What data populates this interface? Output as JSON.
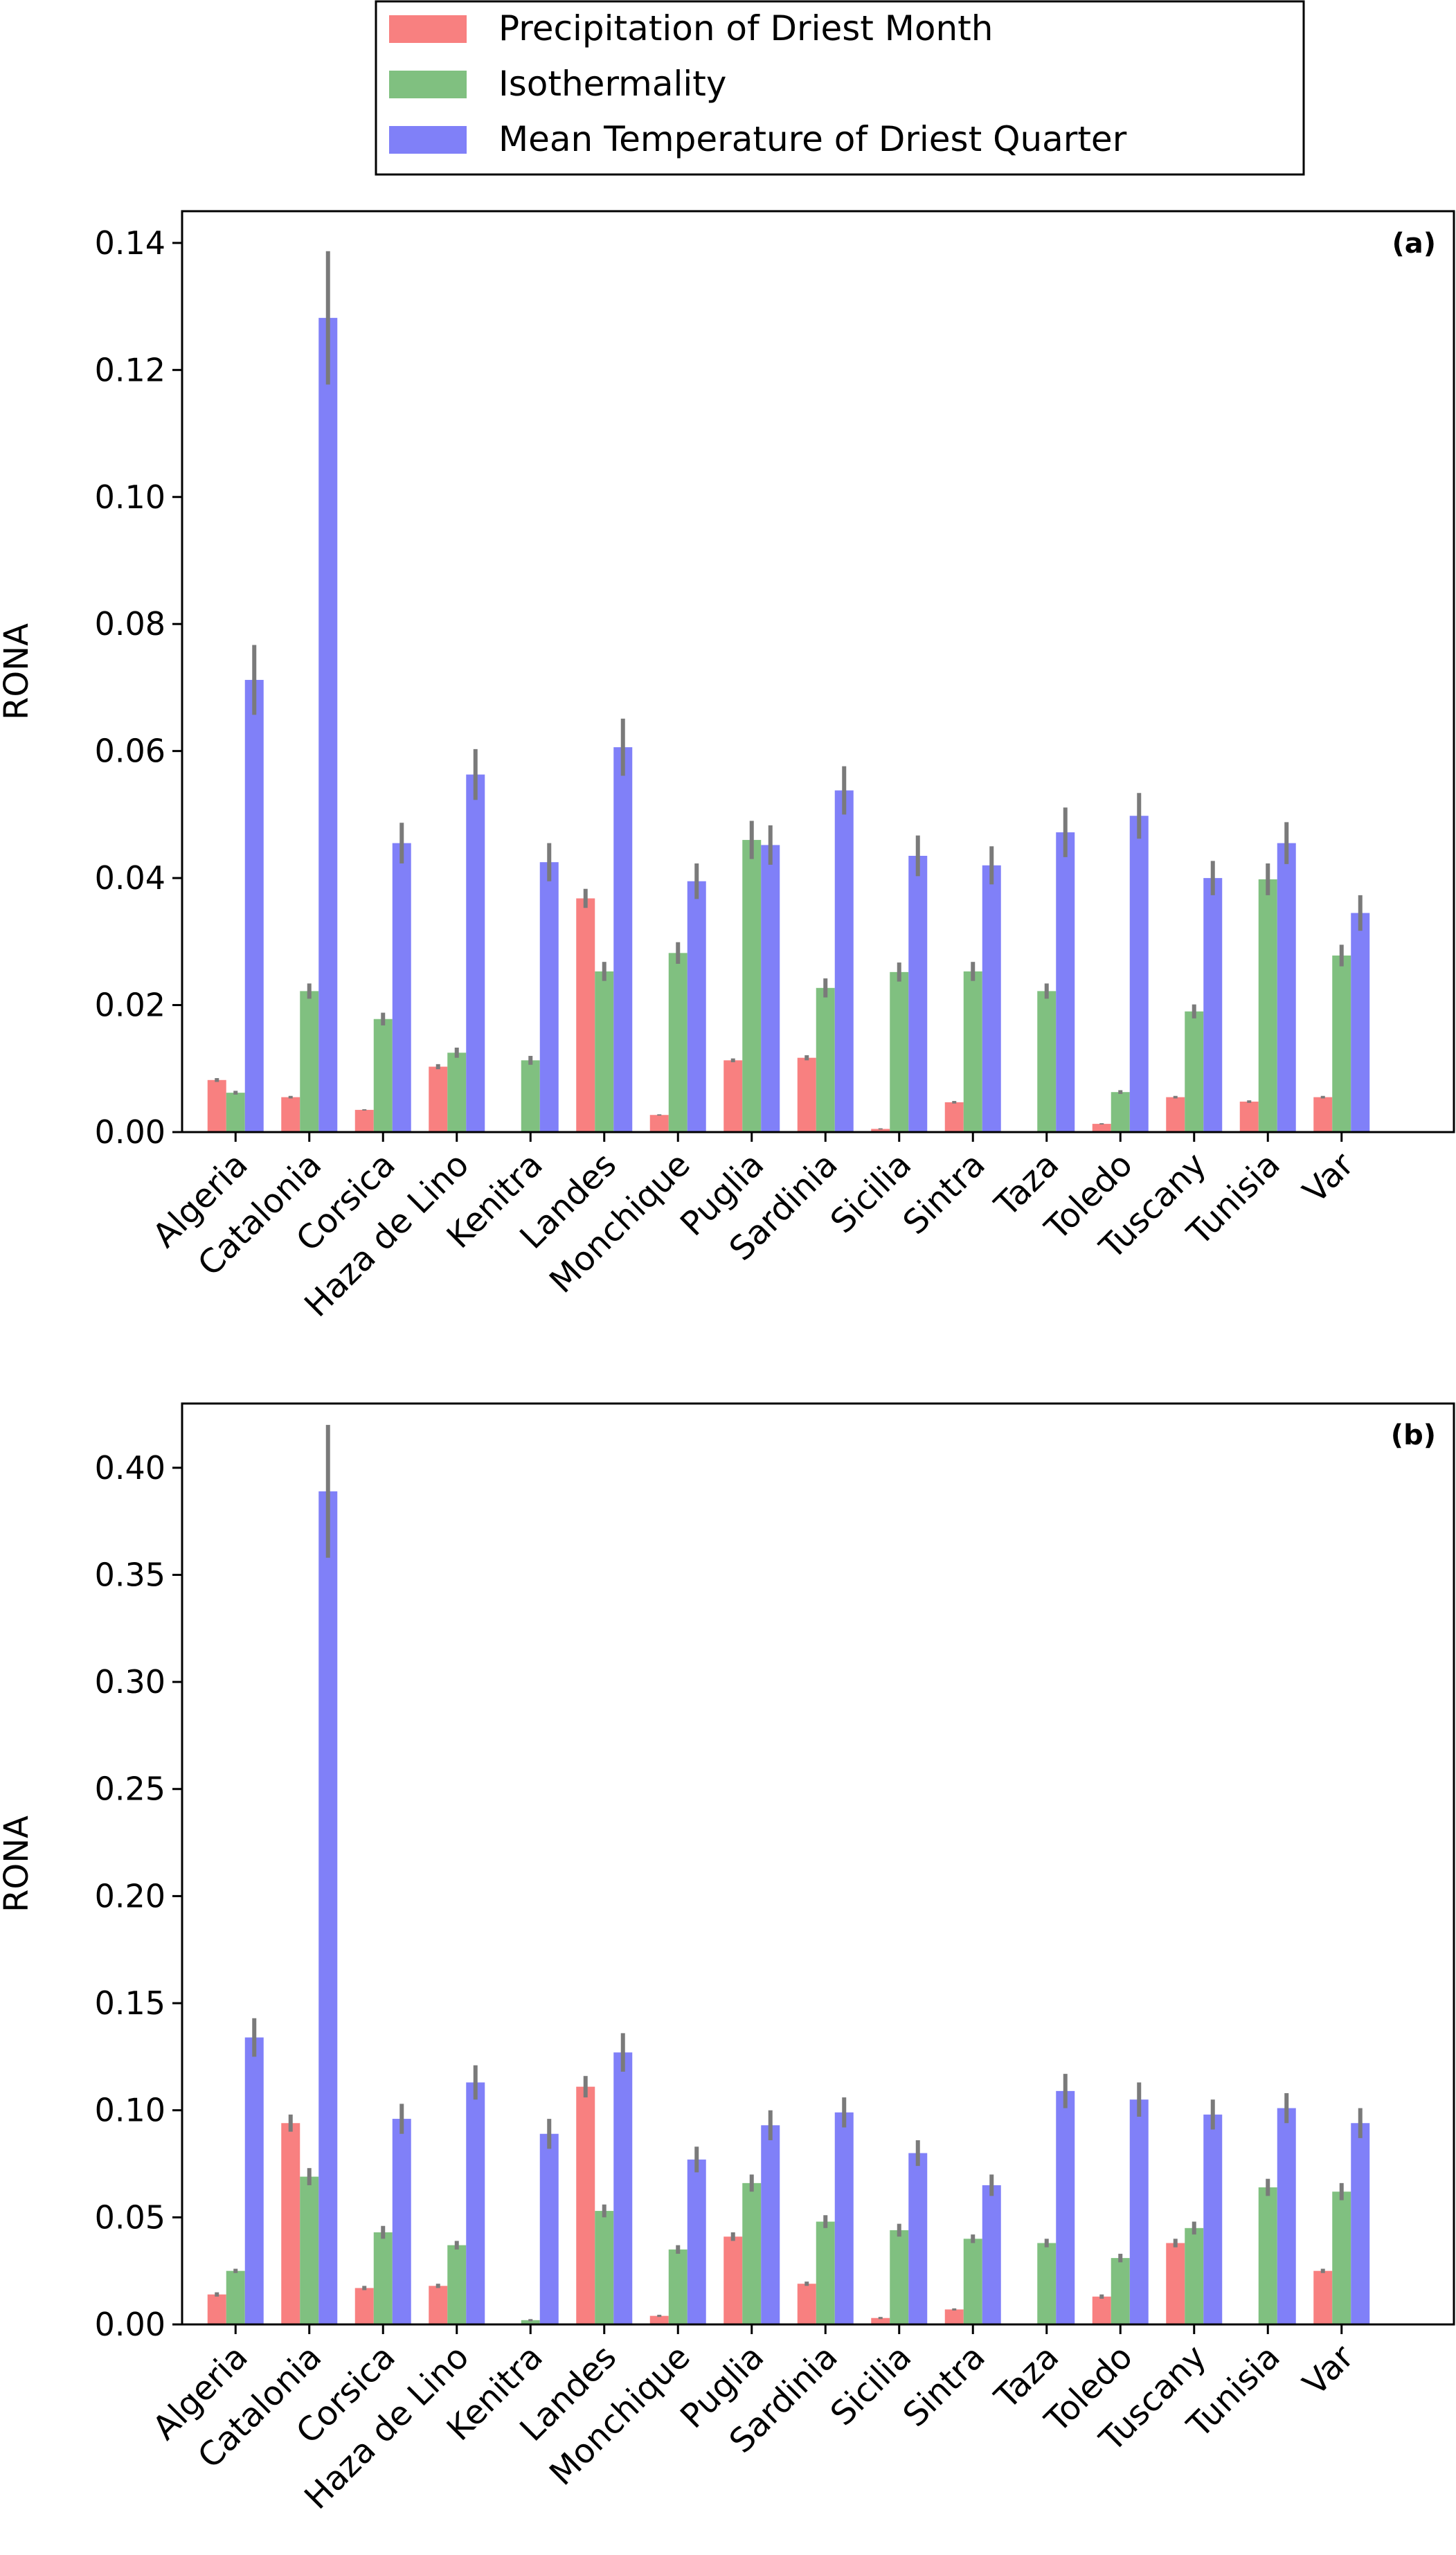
{
  "legend": {
    "entries": [
      {
        "label": "Precipitation of Driest Month",
        "color": "#f88080"
      },
      {
        "label": "Isothermality",
        "color": "#80c080"
      },
      {
        "label": "Mean Temperature of Driest Quarter",
        "color": "#8080f8"
      }
    ],
    "placement": "top-center"
  },
  "error_bar_color": "#7a7a7a",
  "chart_data": [
    {
      "type": "bar",
      "panel_label": "(a)",
      "ylabel": "RONA",
      "ylim": [
        0,
        0.145
      ],
      "yticks": [
        "0.00",
        "0.02",
        "0.04",
        "0.06",
        "0.08",
        "0.10",
        "0.12",
        "0.14"
      ],
      "ytick_values": [
        0,
        0.02,
        0.04,
        0.06,
        0.08,
        0.1,
        0.12,
        0.14
      ],
      "categories": [
        "Algeria",
        "Catalonia",
        "Corsica",
        "Haza de Lino",
        "Kenitra",
        "Landes",
        "Monchique",
        "Puglia",
        "Sardinia",
        "Sicilia",
        "Sintra",
        "Taza",
        "Toledo",
        "Tuscany",
        "Tunisia",
        "Var"
      ],
      "series": [
        {
          "name": "Precipitation of Driest Month",
          "values": [
            0.0082,
            0.0055,
            0.0035,
            0.0103,
            0,
            0.0368,
            0.0027,
            0.0113,
            0.0117,
            0.0005,
            0.0047,
            0,
            0.0013,
            0.0055,
            0.0048,
            0.0055
          ],
          "errors": [
            0.0003,
            0.0002,
            0.0001,
            0.0004,
            0,
            0.0015,
            0.0001,
            0.0003,
            0.0004,
            0.0001,
            0.0002,
            0,
            0.0001,
            0.0002,
            0.0002,
            0.0002
          ]
        },
        {
          "name": "Isothermality",
          "values": [
            0.0062,
            0.0222,
            0.0178,
            0.0125,
            0.0113,
            0.0253,
            0.0282,
            0.046,
            0.0227,
            0.0252,
            0.0253,
            0.0222,
            0.0063,
            0.019,
            0.0398,
            0.0278
          ],
          "errors": [
            0.0003,
            0.0012,
            0.001,
            0.0008,
            0.0007,
            0.0015,
            0.0017,
            0.003,
            0.0015,
            0.0015,
            0.0015,
            0.0012,
            0.0003,
            0.0011,
            0.0025,
            0.0017
          ]
        },
        {
          "name": "Mean Temperature of Driest Quarter",
          "values": [
            0.0712,
            0.1282,
            0.0455,
            0.0563,
            0.0425,
            0.0606,
            0.0395,
            0.0452,
            0.0538,
            0.0435,
            0.042,
            0.0472,
            0.0498,
            0.04,
            0.0455,
            0.0345
          ],
          "errors": [
            0.0055,
            0.0105,
            0.0032,
            0.004,
            0.003,
            0.0045,
            0.0028,
            0.0031,
            0.0038,
            0.0032,
            0.003,
            0.0039,
            0.0036,
            0.0027,
            0.0033,
            0.0028
          ]
        }
      ]
    },
    {
      "type": "bar",
      "panel_label": "(b)",
      "ylabel": "RONA",
      "ylim": [
        0,
        0.43
      ],
      "yticks": [
        "0.00",
        "0.05",
        "0.10",
        "0.15",
        "0.20",
        "0.25",
        "0.30",
        "0.35",
        "0.40"
      ],
      "ytick_values": [
        0,
        0.05,
        0.1,
        0.15,
        0.2,
        0.25,
        0.3,
        0.35,
        0.4
      ],
      "categories": [
        "Algeria",
        "Catalonia",
        "Corsica",
        "Haza de Lino",
        "Kenitra",
        "Landes",
        "Monchique",
        "Puglia",
        "Sardinia",
        "Sicilia",
        "Sintra",
        "Taza",
        "Toledo",
        "Tuscany",
        "Tunisia",
        "Var"
      ],
      "series": [
        {
          "name": "Precipitation of Driest Month",
          "values": [
            0.014,
            0.094,
            0.017,
            0.018,
            0,
            0.111,
            0.004,
            0.041,
            0.019,
            0.003,
            0.007,
            0,
            0.013,
            0.038,
            0,
            0.025
          ],
          "errors": [
            0.001,
            0.004,
            0.001,
            0.001,
            0,
            0.005,
            0.0005,
            0.002,
            0.001,
            0.0005,
            0.0005,
            0,
            0.001,
            0.002,
            0,
            0.001
          ]
        },
        {
          "name": "Isothermality",
          "values": [
            0.025,
            0.069,
            0.043,
            0.037,
            0.002,
            0.053,
            0.035,
            0.066,
            0.048,
            0.044,
            0.04,
            0.038,
            0.031,
            0.045,
            0.064,
            0.062
          ],
          "errors": [
            0.001,
            0.004,
            0.003,
            0.002,
            0.0005,
            0.003,
            0.002,
            0.004,
            0.003,
            0.003,
            0.002,
            0.002,
            0.002,
            0.003,
            0.004,
            0.004
          ]
        },
        {
          "name": "Mean Temperature of Driest Quarter",
          "values": [
            0.134,
            0.389,
            0.096,
            0.113,
            0.089,
            0.127,
            0.077,
            0.093,
            0.099,
            0.08,
            0.065,
            0.109,
            0.105,
            0.098,
            0.101,
            0.094
          ],
          "errors": [
            0.009,
            0.031,
            0.007,
            0.008,
            0.007,
            0.009,
            0.006,
            0.007,
            0.007,
            0.006,
            0.005,
            0.008,
            0.008,
            0.007,
            0.007,
            0.007
          ]
        }
      ]
    }
  ]
}
